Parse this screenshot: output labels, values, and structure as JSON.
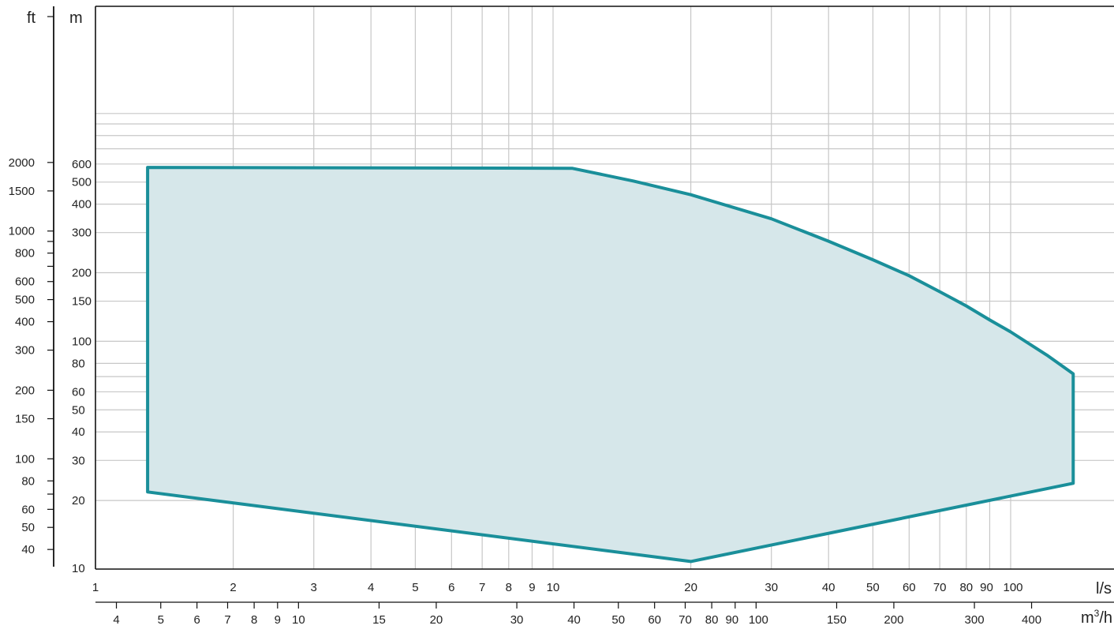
{
  "chart_data": {
    "type": "area",
    "scale": {
      "x": "log",
      "y": "log"
    },
    "grid": true,
    "x_primary": {
      "unit": "l/s",
      "range": [
        1,
        580
      ],
      "ticks": [
        {
          "v": 1,
          "label": "1"
        },
        {
          "v": 2,
          "label": "2"
        },
        {
          "v": 3,
          "label": "3"
        },
        {
          "v": 4,
          "label": "4"
        },
        {
          "v": 5,
          "label": "5"
        },
        {
          "v": 6,
          "label": "6"
        },
        {
          "v": 7,
          "label": "7"
        },
        {
          "v": 8,
          "label": "8"
        },
        {
          "v": 9,
          "label": "9"
        },
        {
          "v": 10,
          "label": "10"
        },
        {
          "v": 20,
          "label": "20"
        },
        {
          "v": 30,
          "label": "30"
        },
        {
          "v": 40,
          "label": "40"
        },
        {
          "v": 50,
          "label": "50"
        },
        {
          "v": 60,
          "label": "60"
        },
        {
          "v": 70,
          "label": "70"
        },
        {
          "v": 80,
          "label": "80"
        },
        {
          "v": 90,
          "label": "90"
        },
        {
          "v": 100,
          "label": "100"
        }
      ]
    },
    "x_secondary": {
      "unit_main": "m",
      "unit_sup": "3",
      "unit_tail": "/h",
      "ticks": [
        {
          "v": 4,
          "label": "4"
        },
        {
          "v": 5,
          "label": "5"
        },
        {
          "v": 6,
          "label": "6"
        },
        {
          "v": 7,
          "label": "7"
        },
        {
          "v": 8,
          "label": "8"
        },
        {
          "v": 9,
          "label": "9"
        },
        {
          "v": 10,
          "label": "10"
        },
        {
          "v": 15,
          "label": "15"
        },
        {
          "v": 20,
          "label": "20"
        },
        {
          "v": 30,
          "label": "30"
        },
        {
          "v": 40,
          "label": "40"
        },
        {
          "v": 50,
          "label": "50"
        },
        {
          "v": 60,
          "label": "60"
        },
        {
          "v": 70,
          "label": "70"
        },
        {
          "v": 80,
          "label": "80"
        },
        {
          "v": 90,
          "label": "90"
        },
        {
          "v": 100,
          "label": "100"
        },
        {
          "v": 150,
          "label": "150"
        },
        {
          "v": 200,
          "label": "200"
        },
        {
          "v": 300,
          "label": "300"
        },
        {
          "v": 400,
          "label": "400"
        }
      ]
    },
    "y_primary": {
      "unit": "m",
      "range": [
        10,
        1000
      ],
      "ticks": [
        {
          "v": 10,
          "label": "10"
        },
        {
          "v": 20,
          "label": "20"
        },
        {
          "v": 30,
          "label": "30"
        },
        {
          "v": 40,
          "label": "40"
        },
        {
          "v": 50,
          "label": "50"
        },
        {
          "v": 60,
          "label": "60"
        },
        {
          "v": 80,
          "label": "80"
        },
        {
          "v": 100,
          "label": "100"
        },
        {
          "v": 150,
          "label": "150"
        },
        {
          "v": 200,
          "label": "200"
        },
        {
          "v": 300,
          "label": "300"
        },
        {
          "v": 400,
          "label": "400"
        },
        {
          "v": 500,
          "label": "500"
        },
        {
          "v": 600,
          "label": "600"
        }
      ],
      "minor_gridlines": [
        70,
        700,
        800,
        900,
        1000
      ]
    },
    "y_secondary": {
      "unit": "ft",
      "ticks": [
        {
          "v": 40,
          "label": "40"
        },
        {
          "v": 50,
          "label": "50"
        },
        {
          "v": 60,
          "label": "60"
        },
        {
          "v": 80,
          "label": "80"
        },
        {
          "v": 100,
          "label": "100"
        },
        {
          "v": 150,
          "label": "150"
        },
        {
          "v": 200,
          "label": "200"
        },
        {
          "v": 300,
          "label": "300"
        },
        {
          "v": 400,
          "label": "400"
        },
        {
          "v": 500,
          "label": "500"
        },
        {
          "v": 600,
          "label": "600"
        },
        {
          "v": 800,
          "label": "800"
        },
        {
          "v": 1000,
          "label": "1000"
        },
        {
          "v": 1500,
          "label": "1500"
        },
        {
          "v": 2000,
          "label": "2000"
        }
      ],
      "minor_ticks": [
        70,
        700,
        900
      ]
    },
    "series": [
      {
        "color": "#1a8f9a",
        "fill": "#d6e7ea",
        "points": [
          [
            1.3,
            580
          ],
          [
            11,
            575
          ],
          [
            15,
            505
          ],
          [
            20,
            440
          ],
          [
            30,
            345
          ],
          [
            40,
            275
          ],
          [
            50,
            228
          ],
          [
            60,
            194
          ],
          [
            70,
            165
          ],
          [
            80,
            143
          ],
          [
            90,
            124
          ],
          [
            100,
            110
          ],
          [
            120,
            87
          ],
          [
            137,
            72
          ],
          [
            137,
            23.8
          ],
          [
            20,
            10.8
          ],
          [
            1.3,
            21.8
          ]
        ]
      }
    ]
  }
}
